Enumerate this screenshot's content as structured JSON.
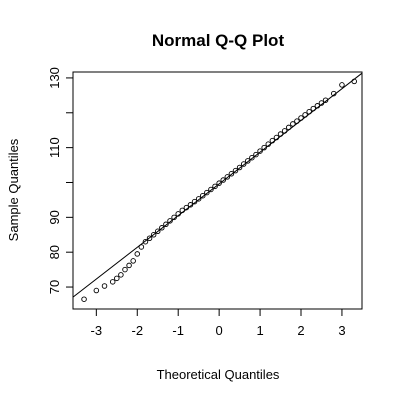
{
  "chart_data": {
    "type": "scatter",
    "title": "Normal Q-Q Plot",
    "x_label": "Theoretical Quantiles",
    "y_label": "Sample Quantiles",
    "x": [
      -3.3,
      -3.0,
      -2.8,
      -2.6,
      -2.5,
      -2.4,
      -2.3,
      -2.2,
      -2.1,
      -2.0,
      -1.9,
      -1.8,
      -1.7,
      -1.6,
      -1.5,
      -1.4,
      -1.3,
      -1.2,
      -1.1,
      -1.0,
      -0.9,
      -0.8,
      -0.7,
      -0.6,
      -0.5,
      -0.4,
      -0.3,
      -0.2,
      -0.1,
      0,
      0.1,
      0.2,
      0.3,
      0.4,
      0.5,
      0.6,
      0.7,
      0.8,
      0.9,
      1.0,
      1.1,
      1.2,
      1.3,
      1.4,
      1.5,
      1.6,
      1.7,
      1.8,
      1.9,
      2.0,
      2.1,
      2.2,
      2.3,
      2.4,
      2.5,
      2.6,
      2.8,
      3.0,
      3.3
    ],
    "values": [
      66.5,
      69.0,
      70.3,
      71.5,
      72.5,
      73.5,
      75.0,
      76.2,
      77.5,
      79.5,
      81.5,
      83.0,
      84.0,
      85.0,
      86.0,
      87.0,
      88.0,
      89.0,
      90.0,
      91.0,
      92.0,
      92.8,
      93.6,
      94.5,
      95.3,
      96.2,
      97.1,
      98.0,
      98.9,
      99.8,
      100.7,
      101.6,
      102.5,
      103.4,
      104.3,
      105.3,
      106.2,
      107.1,
      108.0,
      109.0,
      110.0,
      111.0,
      112.0,
      112.9,
      113.9,
      114.8,
      115.8,
      116.8,
      117.6,
      118.5,
      119.4,
      120.3,
      121.2,
      122.0,
      122.8,
      123.6,
      125.5,
      128.0,
      129.0
    ],
    "color": "#000000",
    "qqline": {
      "intercept": 99.6,
      "slope": 9.1
    },
    "xlim": [
      -3.57,
      3.49
    ],
    "ylim": [
      63.7,
      131.7
    ],
    "xticks": [
      -3,
      -2,
      -1,
      0,
      1,
      2,
      3
    ],
    "yticks": [
      70,
      80,
      90,
      {
        "value": 100,
        "label": null
      },
      110,
      {
        "value": 120,
        "label": null
      },
      130
    ]
  }
}
